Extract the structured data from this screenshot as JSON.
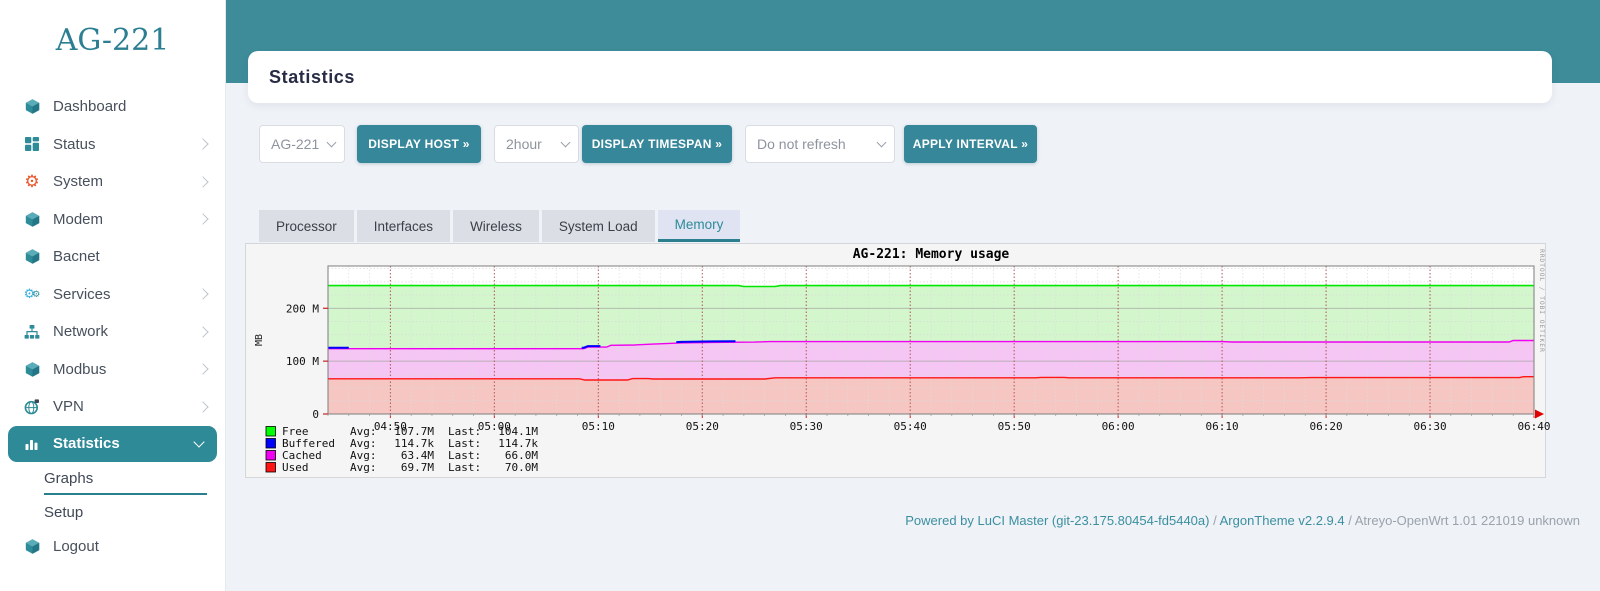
{
  "accent": "#3a8a98",
  "sidebar": {
    "title": "AG-221",
    "items": [
      {
        "label": "Dashboard",
        "icon": "cube-icon"
      },
      {
        "label": "Status",
        "icon": "grid-icon",
        "expandable": true
      },
      {
        "label": "System",
        "icon": "gear-icon",
        "expandable": true
      },
      {
        "label": "Modem",
        "icon": "cube-icon",
        "expandable": true
      },
      {
        "label": "Bacnet",
        "icon": "cube-icon"
      },
      {
        "label": "Services",
        "icon": "gears-icon",
        "expandable": true
      },
      {
        "label": "Network",
        "icon": "sitemap-icon",
        "expandable": true
      },
      {
        "label": "Modbus",
        "icon": "cube-icon",
        "expandable": true
      },
      {
        "label": "VPN",
        "icon": "globe-icon",
        "expandable": true
      },
      {
        "label": "Statistics",
        "icon": "chart-icon",
        "expandable": true,
        "active": true,
        "expanded": true
      },
      {
        "label": "Graphs",
        "sub": true,
        "active": true
      },
      {
        "label": "Setup",
        "sub": true
      },
      {
        "label": "Logout",
        "icon": "cube-icon"
      }
    ]
  },
  "page": {
    "title": "Statistics"
  },
  "controls": {
    "host_value": "AG-221",
    "display_host_label": "DISPLAY HOST »",
    "timespan_value": "2hour",
    "display_timespan_label": "DISPLAY TIMESPAN »",
    "refresh_value": "Do not refresh",
    "apply_interval_label": "APPLY INTERVAL »"
  },
  "tabs": [
    {
      "label": "Processor"
    },
    {
      "label": "Interfaces"
    },
    {
      "label": "Wireless"
    },
    {
      "label": "System Load"
    },
    {
      "label": "Memory",
      "active": true
    }
  ],
  "chart_data": {
    "type": "area",
    "stacked": true,
    "title": "AG-221: Memory usage",
    "ylabel": "MB",
    "xlabel": "",
    "ylim": [
      0,
      280
    ],
    "grid": true,
    "legend_position": "bottom-left",
    "watermark": "RRDTOOL / TOBI OETIKER",
    "t_range_minutes": [
      0,
      116
    ],
    "x_ticks": [
      {
        "label": "04:50",
        "t": 6
      },
      {
        "label": "05:00",
        "t": 16
      },
      {
        "label": "05:10",
        "t": 26
      },
      {
        "label": "05:20",
        "t": 36
      },
      {
        "label": "05:30",
        "t": 46
      },
      {
        "label": "05:40",
        "t": 56
      },
      {
        "label": "05:50",
        "t": 66
      },
      {
        "label": "06:00",
        "t": 76
      },
      {
        "label": "06:10",
        "t": 86
      },
      {
        "label": "06:20",
        "t": 96
      },
      {
        "label": "06:30",
        "t": 106
      },
      {
        "label": "06:40",
        "t": 116
      }
    ],
    "y_ticks": [
      {
        "value": 0,
        "label": "0"
      },
      {
        "value": 100,
        "label": "100 M"
      },
      {
        "value": 200,
        "label": "200 M"
      }
    ],
    "legend_labels": {
      "avg": "Avg:",
      "last": "Last:"
    },
    "series": [
      {
        "name": "Free",
        "color": "#00e800",
        "fill": "#d3f6cd",
        "avg": "107.7M",
        "last": "104.1M"
      },
      {
        "name": "Buffered",
        "color": "#0000ff",
        "fill": "#0000ff",
        "avg": "114.7k",
        "last": "114.7k"
      },
      {
        "name": "Cached",
        "color": "#f000f0",
        "fill": "#f5c5f3",
        "avg": "63.4M",
        "last": "66.0M"
      },
      {
        "name": "Used",
        "color": "#ff1515",
        "fill": "#f6c6c2",
        "avg": "69.7M",
        "last": "70.0M"
      }
    ],
    "profiles_mb": {
      "total_top": [
        [
          0,
          243
        ],
        [
          39.5,
          243
        ],
        [
          40,
          241.2
        ],
        [
          43,
          241.2
        ],
        [
          43.5,
          243
        ],
        [
          116,
          243
        ]
      ],
      "cached_top": [
        [
          0,
          123.5
        ],
        [
          24.6,
          123.5
        ],
        [
          25,
          126.5
        ],
        [
          26.8,
          126.5
        ],
        [
          27.2,
          130
        ],
        [
          29.5,
          130.5
        ],
        [
          31,
          132
        ],
        [
          34,
          134.5
        ],
        [
          37,
          135.5
        ],
        [
          41,
          136
        ],
        [
          42.5,
          137
        ],
        [
          86,
          137
        ],
        [
          87,
          136.2
        ],
        [
          113.6,
          136.2
        ],
        [
          114,
          139
        ],
        [
          116,
          139
        ]
      ],
      "used_top": [
        [
          0,
          66.5
        ],
        [
          24.2,
          66.5
        ],
        [
          24.7,
          64.3
        ],
        [
          28.8,
          64.3
        ],
        [
          29.3,
          67
        ],
        [
          30.8,
          67
        ],
        [
          31.3,
          66.2
        ],
        [
          42,
          66.2
        ],
        [
          43,
          68.4
        ],
        [
          68,
          68.4
        ],
        [
          68.6,
          69.3
        ],
        [
          70.8,
          69.3
        ],
        [
          71.3,
          68.4
        ],
        [
          93.5,
          68.4
        ],
        [
          94.5,
          68.8
        ],
        [
          114.6,
          68.8
        ],
        [
          115,
          70.6
        ],
        [
          116,
          70.6
        ]
      ],
      "buffered_segments": [
        [
          0,
          2.0
        ],
        [
          24.4,
          26.2
        ],
        [
          33.5,
          39.2
        ]
      ]
    }
  },
  "footer": {
    "link1": "Powered by LuCI Master (git-23.175.80454-fd5440a)",
    "sep1": " / ",
    "link2": "ArgonTheme v2.2.9.4",
    "sep2": " / ",
    "build": "Atreyo-OpenWrt 1.01 221019 unknown"
  }
}
